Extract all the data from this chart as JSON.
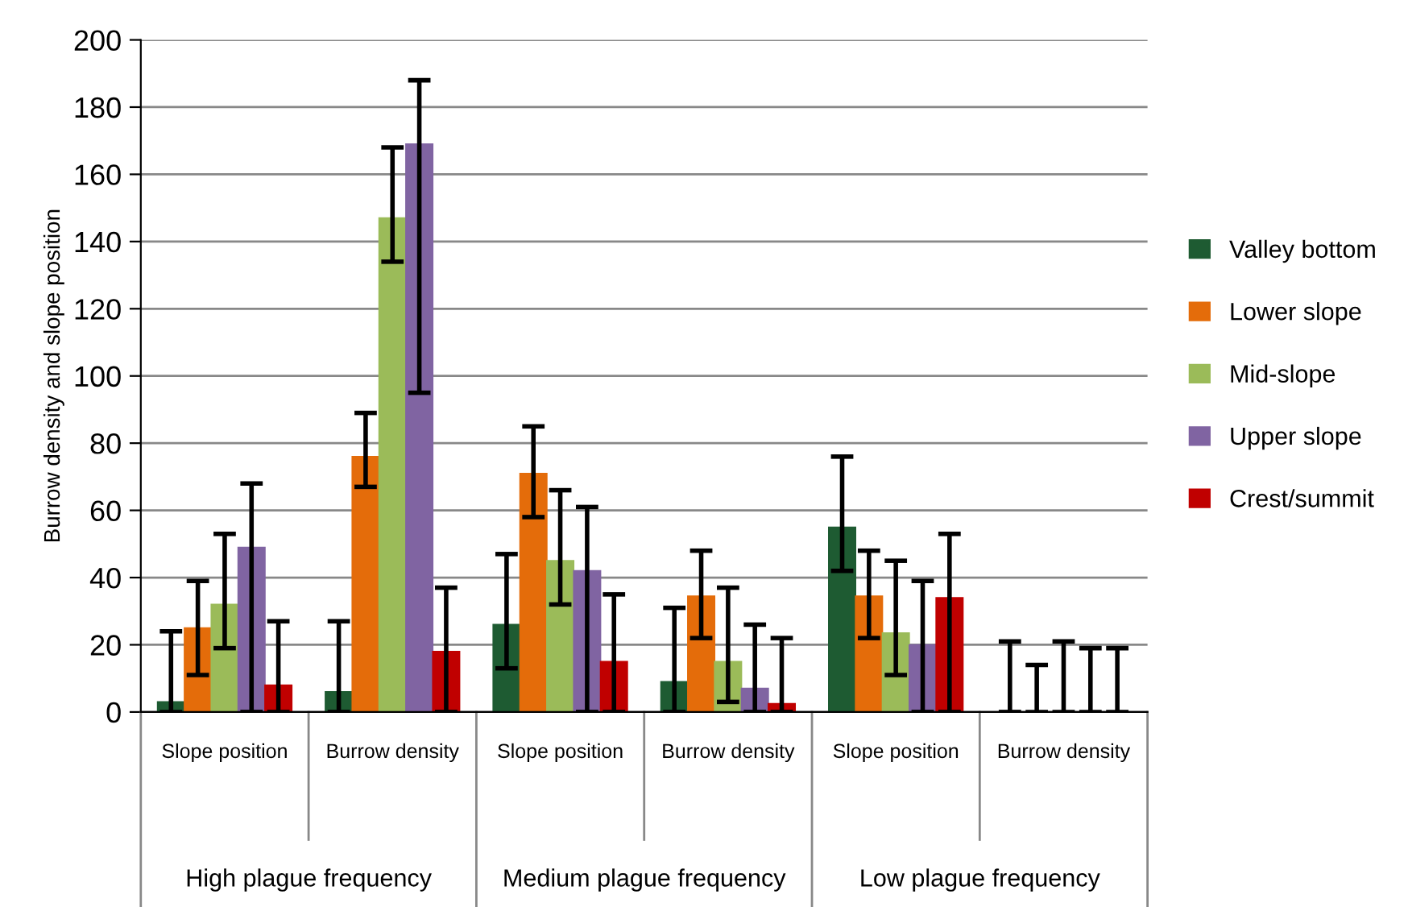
{
  "chart_data": {
    "type": "bar",
    "ylabel": "Burrow density and slope position",
    "categories": [
      "Slope position",
      "Burrow density",
      "Slope position",
      "Burrow density",
      "Slope position",
      "Burrow density"
    ],
    "annotations": [
      "High plague frequency",
      "Medium plague frequency",
      "Low plague frequency"
    ],
    "series": [
      {
        "name": "Valley bottom",
        "color": "#1e5b32",
        "values": [
          3,
          6,
          26,
          9,
          55,
          0
        ],
        "errors": [
          [
            0,
            24
          ],
          [
            0,
            27
          ],
          [
            13,
            47
          ],
          [
            0,
            31
          ],
          [
            42,
            76
          ],
          [
            0,
            21
          ]
        ]
      },
      {
        "name": "Lower slope",
        "color": "#e46c0a",
        "values": [
          25,
          76,
          71,
          34.5,
          34.5,
          0
        ],
        "errors": [
          [
            11,
            39
          ],
          [
            67,
            89
          ],
          [
            58,
            85
          ],
          [
            22,
            48
          ],
          [
            22,
            48
          ],
          [
            0,
            14
          ]
        ]
      },
      {
        "name": "Mid-slope",
        "color": "#9bbb59",
        "values": [
          32,
          147,
          45,
          15,
          23.5,
          0
        ],
        "errors": [
          [
            19,
            53
          ],
          [
            134,
            168
          ],
          [
            32,
            66
          ],
          [
            3,
            37
          ],
          [
            11,
            45
          ],
          [
            0,
            21
          ]
        ]
      },
      {
        "name": "Upper slope",
        "color": "#8064a2",
        "values": [
          49,
          169,
          42,
          7,
          20,
          0
        ],
        "errors": [
          [
            0,
            68
          ],
          [
            95,
            188
          ],
          [
            0,
            61
          ],
          [
            0,
            26
          ],
          [
            0,
            39
          ],
          [
            0,
            19
          ]
        ]
      },
      {
        "name": "Crest/summit",
        "color": "#c00000",
        "values": [
          8,
          18,
          15,
          2.5,
          34,
          0
        ],
        "errors": [
          [
            0,
            27
          ],
          [
            0,
            37
          ],
          [
            0,
            35
          ],
          [
            0,
            22
          ],
          [
            0,
            53
          ],
          [
            0,
            19
          ]
        ]
      }
    ],
    "ylim": [
      0,
      200
    ],
    "yticks": [
      0,
      20,
      40,
      60,
      80,
      100,
      120,
      140,
      160,
      180,
      200
    ],
    "grid": "y",
    "legend": "right"
  }
}
